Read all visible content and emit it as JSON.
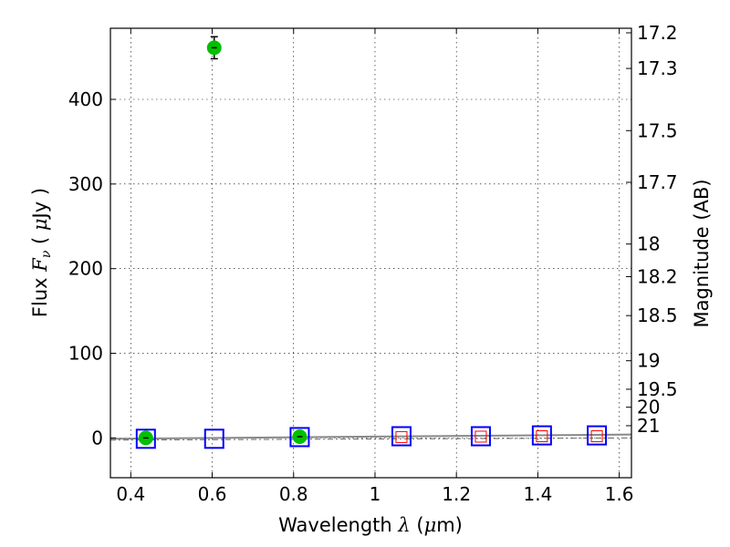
{
  "chart_data": {
    "type": "scatter",
    "xlabel": {
      "prefix": "Wavelength  ",
      "symbol": "λ",
      "suffix": " (",
      "unit_mu": "μ",
      "unit_rest": "m)"
    },
    "ylabel": {
      "prefix": "Flux  ",
      "symbol": "F",
      "sub": "ν",
      "suffix": "  ( ",
      "unit_mu": "μ",
      "unit_rest": "Jy )"
    },
    "y2label": "Magnitude (AB)",
    "xlim": [
      0.35,
      1.63
    ],
    "ylim": [
      -47,
      484
    ],
    "x_ticks": [
      0.4,
      0.6,
      0.8,
      1.0,
      1.2,
      1.4,
      1.6
    ],
    "x_tick_labels": [
      "0.4",
      "0.6",
      "0.8",
      "1",
      "1.2",
      "1.4",
      "1.6"
    ],
    "y_ticks": [
      0,
      100,
      200,
      300,
      400
    ],
    "y_tick_labels": [
      "0",
      "100",
      "200",
      "300",
      "400"
    ],
    "mag_ticks": [
      "17.2",
      "17.3",
      "17.5",
      "17.7",
      "18",
      "18.2",
      "18.5",
      "19",
      "19.5",
      "20",
      "21"
    ],
    "grid": true,
    "series": [
      {
        "marker": "circle",
        "color": "#00c000",
        "points": [
          {
            "x": 0.437,
            "y": 0,
            "yerr": 2
          },
          {
            "x": 0.605,
            "y": 461,
            "yerr": 13
          },
          {
            "x": 0.815,
            "y": 1.5,
            "yerr": 2
          }
        ]
      },
      {
        "marker": "open-square",
        "color": "#0000ff",
        "points": [
          {
            "x": 0.437,
            "y": -1
          },
          {
            "x": 0.605,
            "y": -1
          },
          {
            "x": 0.815,
            "y": 1
          },
          {
            "x": 1.065,
            "y": 2
          },
          {
            "x": 1.26,
            "y": 2
          },
          {
            "x": 1.41,
            "y": 3
          },
          {
            "x": 1.545,
            "y": 3
          }
        ]
      },
      {
        "marker": "open-square-small",
        "color": "#ff0000",
        "points": [
          {
            "x": 1.065,
            "y": 1
          },
          {
            "x": 1.26,
            "y": 1.5
          },
          {
            "x": 1.41,
            "y": 2
          },
          {
            "x": 1.545,
            "y": 2
          }
        ]
      }
    ],
    "model_lines": [
      {
        "style": "solid",
        "color": "#888888",
        "points": [
          [
            0.35,
            -1
          ],
          [
            1.63,
            4
          ]
        ]
      },
      {
        "style": "dashed",
        "color": "#666666",
        "points": [
          [
            0.35,
            -2.5
          ],
          [
            1.63,
            0
          ]
        ]
      }
    ]
  }
}
